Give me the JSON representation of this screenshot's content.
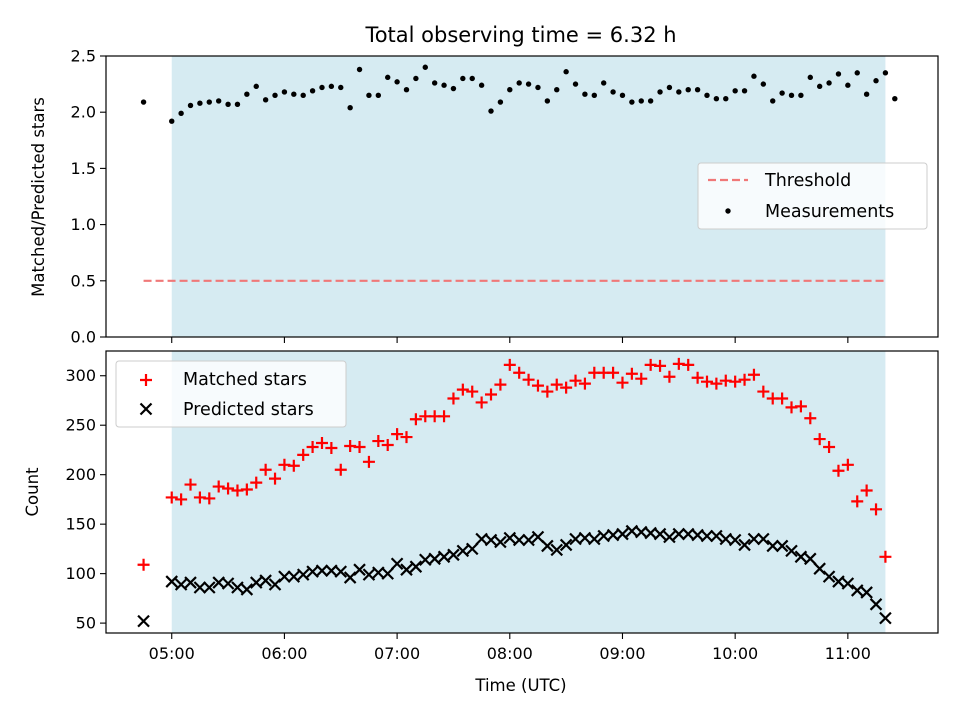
{
  "chart_data": [
    {
      "type": "scatter",
      "title": "Total observing time = 6.32 h",
      "ylabel": "Matched/Predicted stars",
      "xlim": [
        "04:25",
        "11:48"
      ],
      "ylim": [
        0,
        2.5
      ],
      "yticks": [
        "0.0",
        "0.5",
        "1.0",
        "1.5",
        "2.0",
        "2.5"
      ],
      "xticks": [
        "05:00",
        "06:00",
        "07:00",
        "08:00",
        "09:00",
        "10:00",
        "11:00"
      ],
      "shaded_span": [
        "05:00",
        "11:20"
      ],
      "legend_position": "center-right",
      "series": [
        {
          "name": "Threshold",
          "kind": "dashed-line",
          "color": "#f07878",
          "x": [
            "04:45",
            "11:20"
          ],
          "y": [
            0.5,
            0.5
          ]
        },
        {
          "name": "Measurements",
          "kind": "dots",
          "color": "#000000",
          "points": [
            [
              "04:45",
              2.09
            ],
            [
              "05:00",
              1.92
            ],
            [
              "05:05",
              1.99
            ],
            [
              "05:10",
              2.06
            ],
            [
              "05:15",
              2.08
            ],
            [
              "05:20",
              2.09
            ],
            [
              "05:25",
              2.1
            ],
            [
              "05:30",
              2.07
            ],
            [
              "05:35",
              2.07
            ],
            [
              "05:40",
              2.16
            ],
            [
              "05:45",
              2.23
            ],
            [
              "05:50",
              2.11
            ],
            [
              "05:55",
              2.15
            ],
            [
              "06:00",
              2.18
            ],
            [
              "06:05",
              2.16
            ],
            [
              "06:10",
              2.15
            ],
            [
              "06:15",
              2.19
            ],
            [
              "06:20",
              2.22
            ],
            [
              "06:25",
              2.23
            ],
            [
              "06:30",
              2.22
            ],
            [
              "06:35",
              2.04
            ],
            [
              "06:40",
              2.38
            ],
            [
              "06:45",
              2.15
            ],
            [
              "06:50",
              2.15
            ],
            [
              "06:55",
              2.31
            ],
            [
              "07:00",
              2.27
            ],
            [
              "07:05",
              2.2
            ],
            [
              "07:10",
              2.3
            ],
            [
              "07:15",
              2.4
            ],
            [
              "07:20",
              2.26
            ],
            [
              "07:25",
              2.24
            ],
            [
              "07:30",
              2.21
            ],
            [
              "07:35",
              2.3
            ],
            [
              "07:40",
              2.3
            ],
            [
              "07:45",
              2.24
            ],
            [
              "07:50",
              2.01
            ],
            [
              "07:55",
              2.09
            ],
            [
              "08:00",
              2.2
            ],
            [
              "08:05",
              2.26
            ],
            [
              "08:10",
              2.25
            ],
            [
              "08:15",
              2.22
            ],
            [
              "08:20",
              2.1
            ],
            [
              "08:25",
              2.2
            ],
            [
              "08:30",
              2.36
            ],
            [
              "08:35",
              2.25
            ],
            [
              "08:40",
              2.16
            ],
            [
              "08:45",
              2.15
            ],
            [
              "08:50",
              2.26
            ],
            [
              "08:55",
              2.18
            ],
            [
              "09:00",
              2.15
            ],
            [
              "09:05",
              2.09
            ],
            [
              "09:10",
              2.1
            ],
            [
              "09:15",
              2.1
            ],
            [
              "09:20",
              2.18
            ],
            [
              "09:25",
              2.22
            ],
            [
              "09:30",
              2.18
            ],
            [
              "09:35",
              2.2
            ],
            [
              "09:40",
              2.2
            ],
            [
              "09:45",
              2.15
            ],
            [
              "09:50",
              2.12
            ],
            [
              "09:55",
              2.12
            ],
            [
              "10:00",
              2.19
            ],
            [
              "10:05",
              2.19
            ],
            [
              "10:10",
              2.32
            ],
            [
              "10:15",
              2.25
            ],
            [
              "10:20",
              2.1
            ],
            [
              "10:25",
              2.17
            ],
            [
              "10:30",
              2.15
            ],
            [
              "10:35",
              2.15
            ],
            [
              "10:40",
              2.31
            ],
            [
              "10:45",
              2.23
            ],
            [
              "10:50",
              2.26
            ],
            [
              "10:55",
              2.34
            ],
            [
              "11:00",
              2.24
            ],
            [
              "11:05",
              2.35
            ],
            [
              "11:10",
              2.16
            ],
            [
              "11:15",
              2.28
            ],
            [
              "11:20",
              2.35
            ],
            [
              "11:25",
              2.12
            ]
          ]
        }
      ]
    },
    {
      "type": "scatter",
      "xlabel": "Time (UTC)",
      "ylabel": "Count",
      "xlim": [
        "04:25",
        "11:48"
      ],
      "ylim": [
        40,
        325
      ],
      "yticks": [
        "50",
        "100",
        "150",
        "200",
        "250",
        "300"
      ],
      "xticks": [
        "05:00",
        "06:00",
        "07:00",
        "08:00",
        "09:00",
        "10:00",
        "11:00"
      ],
      "shaded_span": [
        "05:00",
        "11:20"
      ],
      "legend_position": "top-left",
      "series": [
        {
          "name": "Matched stars",
          "marker": "plus",
          "color": "#ff0000",
          "points": [
            [
              "04:45",
              109
            ],
            [
              "05:00",
              177
            ],
            [
              "05:05",
              175
            ],
            [
              "05:10",
              190
            ],
            [
              "05:15",
              177
            ],
            [
              "05:20",
              176
            ],
            [
              "05:25",
              188
            ],
            [
              "05:30",
              186
            ],
            [
              "05:35",
              184
            ],
            [
              "05:40",
              185
            ],
            [
              "05:45",
              192
            ],
            [
              "05:50",
              205
            ],
            [
              "05:55",
              196
            ],
            [
              "06:00",
              210
            ],
            [
              "06:05",
              209
            ],
            [
              "06:10",
              220
            ],
            [
              "06:15",
              228
            ],
            [
              "06:20",
              232
            ],
            [
              "06:25",
              227
            ],
            [
              "06:30",
              205
            ],
            [
              "06:35",
              229
            ],
            [
              "06:40",
              228
            ],
            [
              "06:45",
              213
            ],
            [
              "06:50",
              234
            ],
            [
              "06:55",
              230
            ],
            [
              "07:00",
              241
            ],
            [
              "07:05",
              238
            ],
            [
              "07:10",
              256
            ],
            [
              "07:15",
              259
            ],
            [
              "07:20",
              259
            ],
            [
              "07:25",
              259
            ],
            [
              "07:30",
              277
            ],
            [
              "07:35",
              286
            ],
            [
              "07:40",
              284
            ],
            [
              "07:45",
              273
            ],
            [
              "07:50",
              281
            ],
            [
              "07:55",
              291
            ],
            [
              "08:00",
              311
            ],
            [
              "08:05",
              303
            ],
            [
              "08:10",
              296
            ],
            [
              "08:15",
              290
            ],
            [
              "08:20",
              284
            ],
            [
              "08:25",
              291
            ],
            [
              "08:30",
              288
            ],
            [
              "08:35",
              295
            ],
            [
              "08:40",
              292
            ],
            [
              "08:45",
              303
            ],
            [
              "08:50",
              303
            ],
            [
              "08:55",
              303
            ],
            [
              "09:00",
              293
            ],
            [
              "09:05",
              302
            ],
            [
              "09:10",
              297
            ],
            [
              "09:15",
              311
            ],
            [
              "09:20",
              310
            ],
            [
              "09:25",
              299
            ],
            [
              "09:30",
              312
            ],
            [
              "09:35",
              311
            ],
            [
              "09:40",
              298
            ],
            [
              "09:45",
              294
            ],
            [
              "09:50",
              292
            ],
            [
              "09:55",
              295
            ],
            [
              "10:00",
              294
            ],
            [
              "10:05",
              296
            ],
            [
              "10:10",
              301
            ],
            [
              "10:15",
              284
            ],
            [
              "10:20",
              277
            ],
            [
              "10:25",
              277
            ],
            [
              "10:30",
              268
            ],
            [
              "10:35",
              269
            ],
            [
              "10:40",
              257
            ],
            [
              "10:45",
              236
            ],
            [
              "10:50",
              228
            ],
            [
              "10:55",
              204
            ],
            [
              "11:00",
              210
            ],
            [
              "11:05",
              173
            ],
            [
              "11:10",
              184
            ],
            [
              "11:15",
              165
            ],
            [
              "11:20",
              117
            ]
          ]
        },
        {
          "name": "Predicted stars",
          "marker": "x",
          "color": "#000000",
          "points": [
            [
              "04:45",
              52
            ],
            [
              "05:00",
              92
            ],
            [
              "05:05",
              89
            ],
            [
              "05:10",
              91
            ],
            [
              "05:15",
              86
            ],
            [
              "05:20",
              86
            ],
            [
              "05:25",
              91
            ],
            [
              "05:30",
              90
            ],
            [
              "05:35",
              86
            ],
            [
              "05:40",
              84
            ],
            [
              "05:45",
              91
            ],
            [
              "05:50",
              93
            ],
            [
              "05:55",
              89
            ],
            [
              "06:00",
              97
            ],
            [
              "06:05",
              97
            ],
            [
              "06:10",
              99
            ],
            [
              "06:15",
              102
            ],
            [
              "06:20",
              103
            ],
            [
              "06:25",
              103
            ],
            [
              "06:30",
              102
            ],
            [
              "06:35",
              96
            ],
            [
              "06:40",
              104
            ],
            [
              "06:45",
              99
            ],
            [
              "06:50",
              101
            ],
            [
              "06:55",
              100
            ],
            [
              "07:00",
              110
            ],
            [
              "07:05",
              104
            ],
            [
              "07:10",
              107
            ],
            [
              "07:15",
              114
            ],
            [
              "07:20",
              115
            ],
            [
              "07:25",
              117
            ],
            [
              "07:30",
              119
            ],
            [
              "07:35",
              123
            ],
            [
              "07:40",
              125
            ],
            [
              "07:45",
              135
            ],
            [
              "07:50",
              134
            ],
            [
              "07:55",
              132
            ],
            [
              "08:00",
              136
            ],
            [
              "08:05",
              134
            ],
            [
              "08:10",
              134
            ],
            [
              "08:15",
              137
            ],
            [
              "08:20",
              128
            ],
            [
              "08:25",
              124
            ],
            [
              "08:30",
              129
            ],
            [
              "08:35",
              135
            ],
            [
              "08:40",
              136
            ],
            [
              "08:45",
              135
            ],
            [
              "08:50",
              138
            ],
            [
              "08:55",
              139
            ],
            [
              "09:00",
              140
            ],
            [
              "09:05",
              143
            ],
            [
              "09:10",
              142
            ],
            [
              "09:15",
              141
            ],
            [
              "09:20",
              140
            ],
            [
              "09:25",
              137
            ],
            [
              "09:30",
              140
            ],
            [
              "09:35",
              140
            ],
            [
              "09:40",
              139
            ],
            [
              "09:45",
              138
            ],
            [
              "09:50",
              138
            ],
            [
              "09:55",
              135
            ],
            [
              "10:00",
              134
            ],
            [
              "10:05",
              129
            ],
            [
              "10:10",
              135
            ],
            [
              "10:15",
              135
            ],
            [
              "10:20",
              128
            ],
            [
              "10:25",
              128
            ],
            [
              "10:30",
              123
            ],
            [
              "10:35",
              117
            ],
            [
              "10:40",
              115
            ],
            [
              "10:45",
              105
            ],
            [
              "10:50",
              97
            ],
            [
              "10:55",
              92
            ],
            [
              "11:00",
              90
            ],
            [
              "11:05",
              83
            ],
            [
              "11:10",
              81
            ],
            [
              "11:15",
              69
            ],
            [
              "11:20",
              55
            ]
          ]
        }
      ]
    }
  ],
  "colors": {
    "span_fill": "#add8e6",
    "span_alpha": 0.5,
    "axis": "#000000",
    "legend_border": "#cccccc"
  }
}
